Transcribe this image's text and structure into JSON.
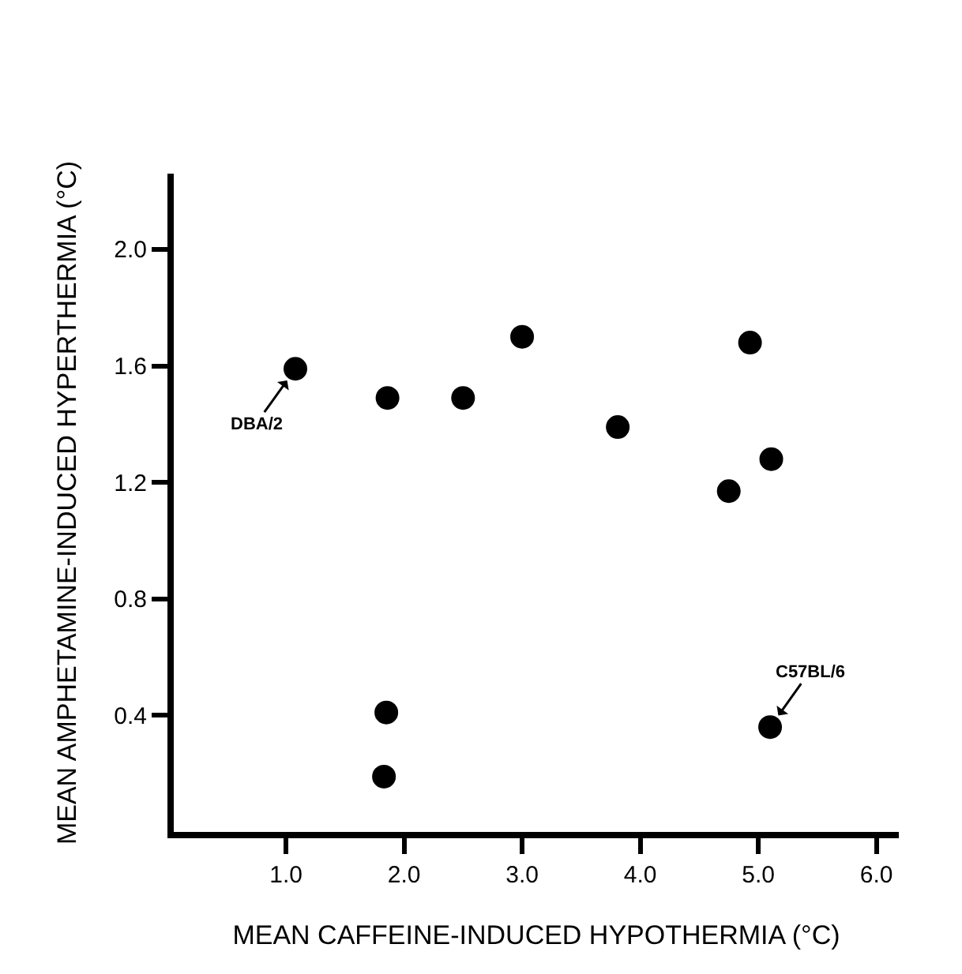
{
  "chart_data": {
    "type": "scatter",
    "xlabel": "MEAN CAFFEINE-INDUCED HYPOTHERMIA (°C)",
    "ylabel": "MEAN AMPHETAMINE-INDUCED HYPERTHERMIA (°C)",
    "x": [
      1.08,
      1.86,
      2.5,
      3.0,
      3.81,
      4.93,
      5.11,
      4.75,
      1.85,
      1.83,
      5.1
    ],
    "series": [
      {
        "color": "#000000",
        "values": [
          1.59,
          1.49,
          1.49,
          1.7,
          1.39,
          1.68,
          1.28,
          1.17,
          0.41,
          0.19,
          0.36
        ]
      }
    ],
    "xlim": [
      0.05,
      6.19
    ],
    "ylim": [
      0,
      2.26
    ],
    "xticks": [
      {
        "value": 1,
        "label": "1.0"
      },
      {
        "value": 2,
        "label": "2.0"
      },
      {
        "value": 3,
        "label": "3.0"
      },
      {
        "value": 4,
        "label": "4.0"
      },
      {
        "value": 5,
        "label": "5.0"
      },
      {
        "value": 6,
        "label": "6.0"
      }
    ],
    "yticks": [
      {
        "value": 0.4,
        "label": "0.4"
      },
      {
        "value": 0.8,
        "label": "0.8"
      },
      {
        "value": 1.2,
        "label": "1.2"
      },
      {
        "value": 1.6,
        "label": "1.6"
      },
      {
        "value": 2,
        "label": "2.0"
      }
    ],
    "annotations": [
      {
        "text": "DBA/2",
        "x": 1.08,
        "y": 1.59
      },
      {
        "text": "C57BL/6",
        "x": 5.1,
        "y": 0.36
      }
    ],
    "marker": "circle"
  }
}
